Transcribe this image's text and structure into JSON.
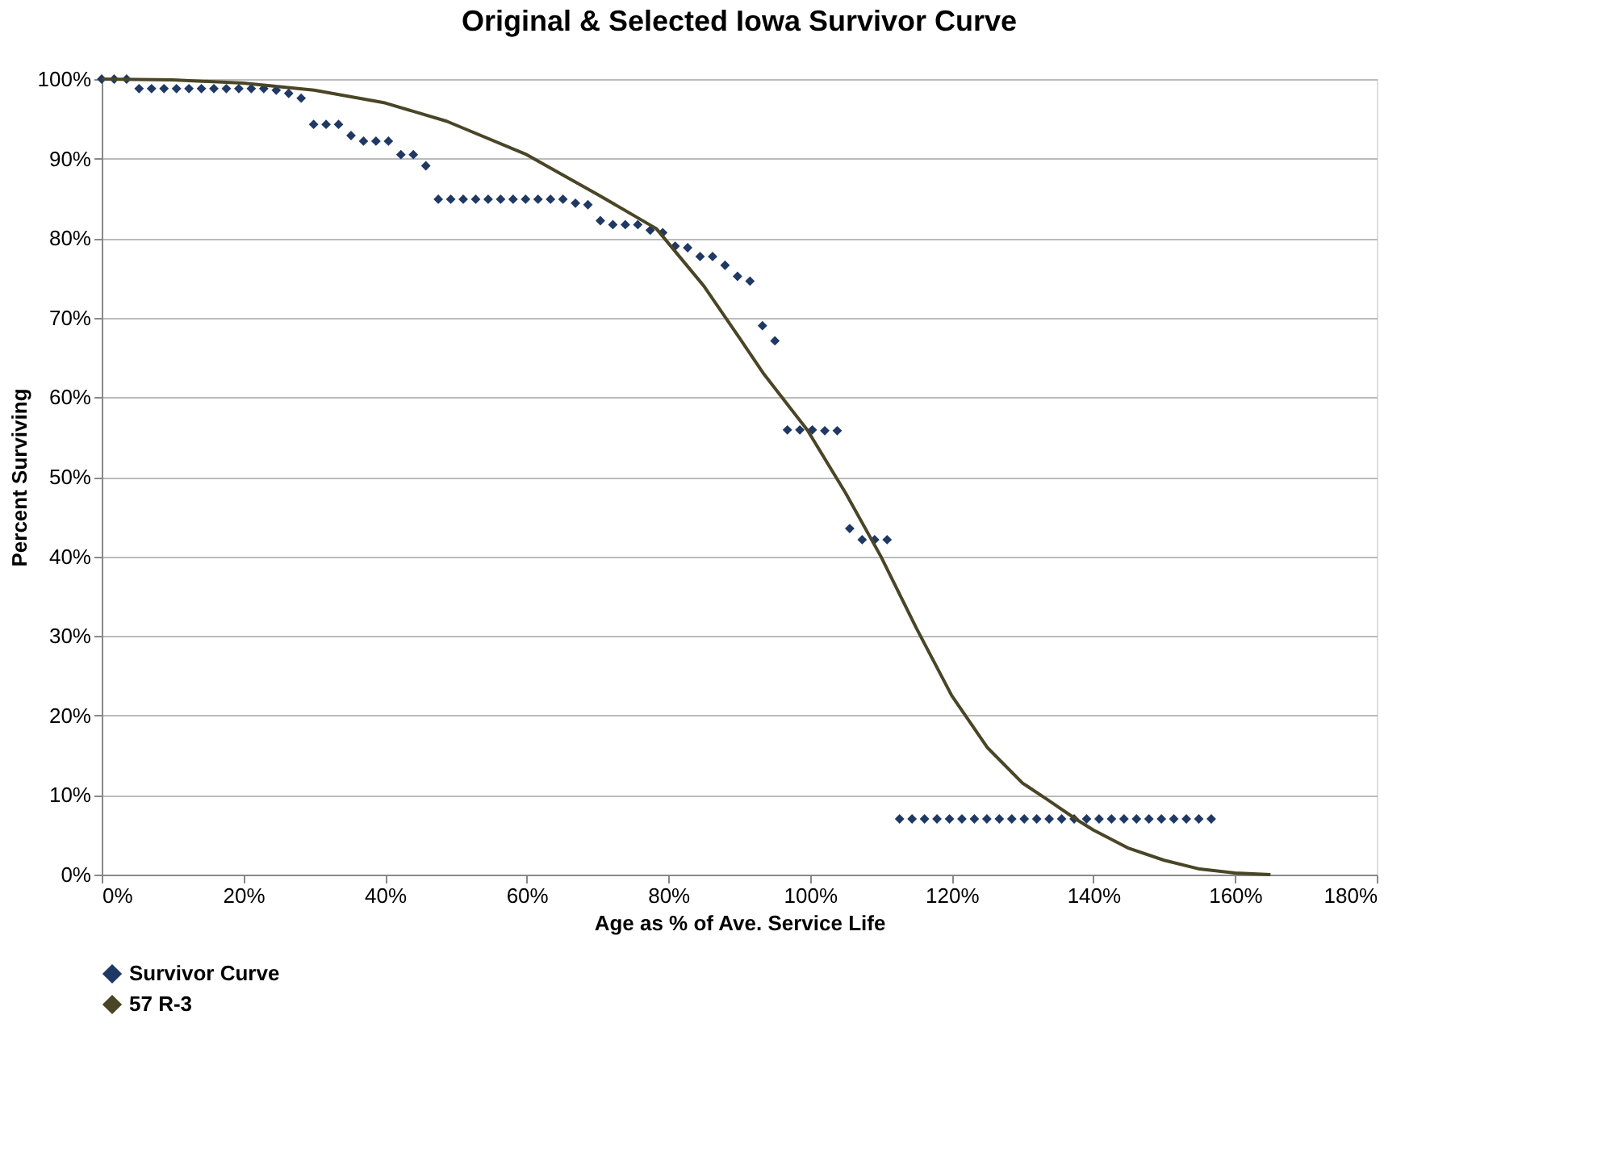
{
  "chart_data": {
    "type": "scatter",
    "title": "Original & Selected Iowa Survivor Curve",
    "xlabel": "Age as % of Ave. Service Life",
    "ylabel": "Percent Surviving",
    "series": [
      {
        "name": "Survivor Curve",
        "color": "#1f3864",
        "marker": "diamond",
        "x": [
          0,
          1.76,
          3.52,
          5.28,
          7.04,
          8.8,
          10.56,
          12.32,
          14.08,
          15.84,
          17.6,
          19.36,
          21.12,
          22.88,
          24.64,
          26.4,
          28.16,
          29.92,
          31.68,
          33.44,
          35.2,
          36.96,
          38.72,
          40.48,
          42.24,
          44.0,
          45.76,
          47.52,
          49.28,
          51.04,
          52.8,
          54.56,
          56.32,
          58.08,
          59.84,
          61.6,
          63.36,
          65.12,
          66.88,
          68.64,
          70.4,
          72.16,
          73.92,
          75.68,
          77.44,
          79.2,
          80.96,
          82.72,
          84.48,
          86.24,
          88.0,
          89.76,
          91.52,
          93.28,
          95.04,
          96.8,
          98.56,
          100.32,
          102.08,
          103.84,
          105.6,
          107.36,
          109.12,
          110.88,
          112.64,
          114.4,
          116.16,
          117.92,
          119.68,
          121.44,
          123.2,
          124.96,
          126.72,
          128.48,
          130.24,
          132.0,
          133.76,
          135.52,
          137.28,
          139.04,
          140.8,
          142.56,
          144.32,
          146.08,
          147.84,
          149.6,
          151.36,
          153.12,
          154.88,
          156.64
        ],
        "values": [
          100,
          100,
          100,
          98.8,
          98.8,
          98.8,
          98.8,
          98.8,
          98.8,
          98.8,
          98.8,
          98.8,
          98.8,
          98.8,
          98.6,
          98.2,
          97.6,
          94.3,
          94.3,
          94.3,
          92.9,
          92.2,
          92.2,
          92.2,
          90.5,
          90.5,
          89.1,
          84.9,
          84.9,
          84.9,
          84.9,
          84.9,
          84.9,
          84.9,
          84.9,
          84.9,
          84.9,
          84.9,
          84.4,
          84.2,
          82.2,
          81.7,
          81.7,
          81.7,
          81.0,
          80.7,
          79.0,
          78.8,
          77.7,
          77.7,
          76.6,
          75.2,
          74.6,
          69.0,
          67.1,
          55.9,
          55.9,
          55.9,
          55.8,
          55.8,
          43.5,
          42.1,
          42.1,
          42.1,
          7.0,
          7.0,
          7.0,
          7.0,
          7.0,
          7.0,
          7.0,
          7.0,
          7.0,
          7.0,
          7.0,
          7.0,
          7.0,
          7.0,
          7.0,
          7.0,
          7.0,
          7.0,
          7.0,
          7.0,
          7.0,
          7.0,
          7.0,
          7.0,
          7.0,
          7.0
        ]
      },
      {
        "name": "57 R-3",
        "type": "line",
        "color": "#4a4526",
        "marker": "none",
        "line_style": "solid",
        "x": [
          0,
          10,
          20,
          30,
          40,
          48.7,
          60,
          70,
          78.3,
          85,
          90,
          93.5,
          99.6,
          105,
          110,
          115,
          120,
          125,
          130,
          133.4,
          137.5,
          140,
          145,
          150,
          155,
          160,
          165
        ],
        "values": [
          100,
          99.9,
          99.5,
          98.6,
          97.0,
          94.7,
          90.5,
          85.5,
          81.2,
          74,
          67.5,
          62.9,
          55.9,
          48,
          40,
          31,
          22.5,
          16,
          11.5,
          9.5,
          7.0,
          5.6,
          3.3,
          1.8,
          0.7,
          0.2,
          0
        ]
      }
    ],
    "xlim": [
      0,
      180
    ],
    "xticks": [
      {
        "value": 0,
        "label": "0%"
      },
      {
        "value": 20,
        "label": "20%"
      },
      {
        "value": 40,
        "label": "40%"
      },
      {
        "value": 60,
        "label": "60%"
      },
      {
        "value": 80,
        "label": "80%"
      },
      {
        "value": 100,
        "label": "100%"
      },
      {
        "value": 120,
        "label": "120%"
      },
      {
        "value": 140,
        "label": "140%"
      },
      {
        "value": 160,
        "label": "160%"
      },
      {
        "value": 180,
        "label": "180%"
      }
    ],
    "ylim": [
      0,
      100
    ],
    "yticks": [
      {
        "value": 0,
        "label": "0%"
      },
      {
        "value": 10,
        "label": "10%"
      },
      {
        "value": 20,
        "label": "20%"
      },
      {
        "value": 30,
        "label": "30%"
      },
      {
        "value": 40,
        "label": "40%"
      },
      {
        "value": 50,
        "label": "50%"
      },
      {
        "value": 60,
        "label": "60%"
      },
      {
        "value": 70,
        "label": "70%"
      },
      {
        "value": 80,
        "label": "80%"
      },
      {
        "value": 90,
        "label": "90%"
      },
      {
        "value": 100,
        "label": "100%"
      }
    ],
    "grid": "y",
    "legend": "bottom"
  }
}
